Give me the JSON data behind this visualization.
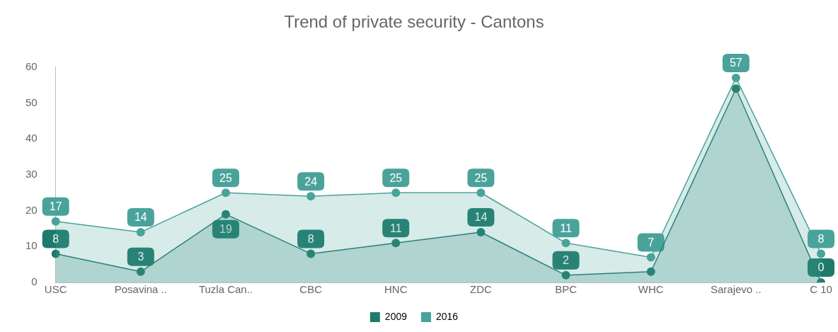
{
  "chart_data": {
    "type": "area",
    "title": "Trend of private security - Cantons",
    "categories": [
      "USC",
      "Posavina ..",
      "Tuzla Can..",
      "CBC",
      "HNC",
      "ZDC",
      "BPC",
      "WHC",
      "Sarajevo ..",
      "C 10"
    ],
    "series": [
      {
        "name": "2009",
        "color": "#1f7a6c",
        "values": [
          8,
          3,
          19,
          8,
          11,
          14,
          2,
          3,
          54,
          0
        ],
        "value_labels": [
          "8",
          "3",
          "19",
          "8",
          "11",
          "14",
          "2",
          null,
          null,
          "0"
        ]
      },
      {
        "name": "2016",
        "color": "#4aa39a",
        "values": [
          17,
          14,
          25,
          24,
          25,
          25,
          11,
          7,
          57,
          8
        ],
        "value_labels": [
          "17",
          "14",
          "25",
          "24",
          "25",
          "25",
          "11",
          "7",
          "57",
          "8"
        ]
      }
    ],
    "ylim": [
      0,
      60
    ],
    "yticks": [
      0,
      10,
      20,
      30,
      40,
      50,
      60
    ],
    "grid": false,
    "legend": "bottom",
    "marker": "circle",
    "line_style": "solid"
  }
}
